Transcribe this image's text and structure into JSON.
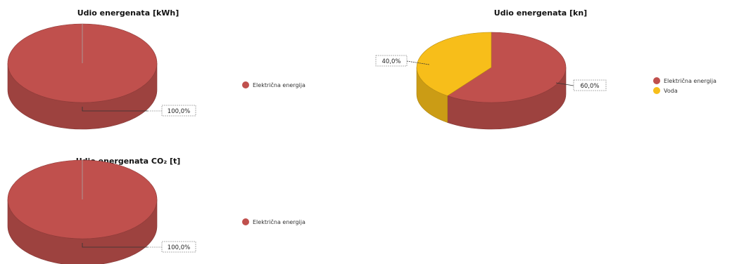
{
  "colors": {
    "elektricna_energija": "#c0504d",
    "elektricna_energija_dark": "#9b3c3a",
    "voda": "#f7be1a",
    "voda_dark": "#d9a00e"
  },
  "chart_data": [
    {
      "type": "pie",
      "title": "Udio energenata [kWh]",
      "slices": [
        {
          "label": "Električna energija",
          "value": 100.0,
          "color": "#c0504d"
        }
      ],
      "data_labels": [
        "100,0%"
      ],
      "legend": [
        "Električna energija"
      ],
      "legend_position": "right"
    },
    {
      "type": "pie",
      "title": "Udio energenata [kn]",
      "slices": [
        {
          "label": "Električna energija",
          "value": 60.0,
          "color": "#c0504d"
        },
        {
          "label": "Voda",
          "value": 40.0,
          "color": "#f7be1a"
        }
      ],
      "data_labels": [
        "60,0%",
        "40,0%"
      ],
      "legend": [
        "Električna energija",
        "Voda"
      ],
      "legend_position": "right"
    },
    {
      "type": "pie",
      "title": "Udio energenata CO₂ [t]",
      "slices": [
        {
          "label": "Električna energija",
          "value": 100.0,
          "color": "#c0504d"
        }
      ],
      "data_labels": [
        "100,0%"
      ],
      "legend": [
        "Električna energija"
      ],
      "legend_position": "right"
    }
  ]
}
